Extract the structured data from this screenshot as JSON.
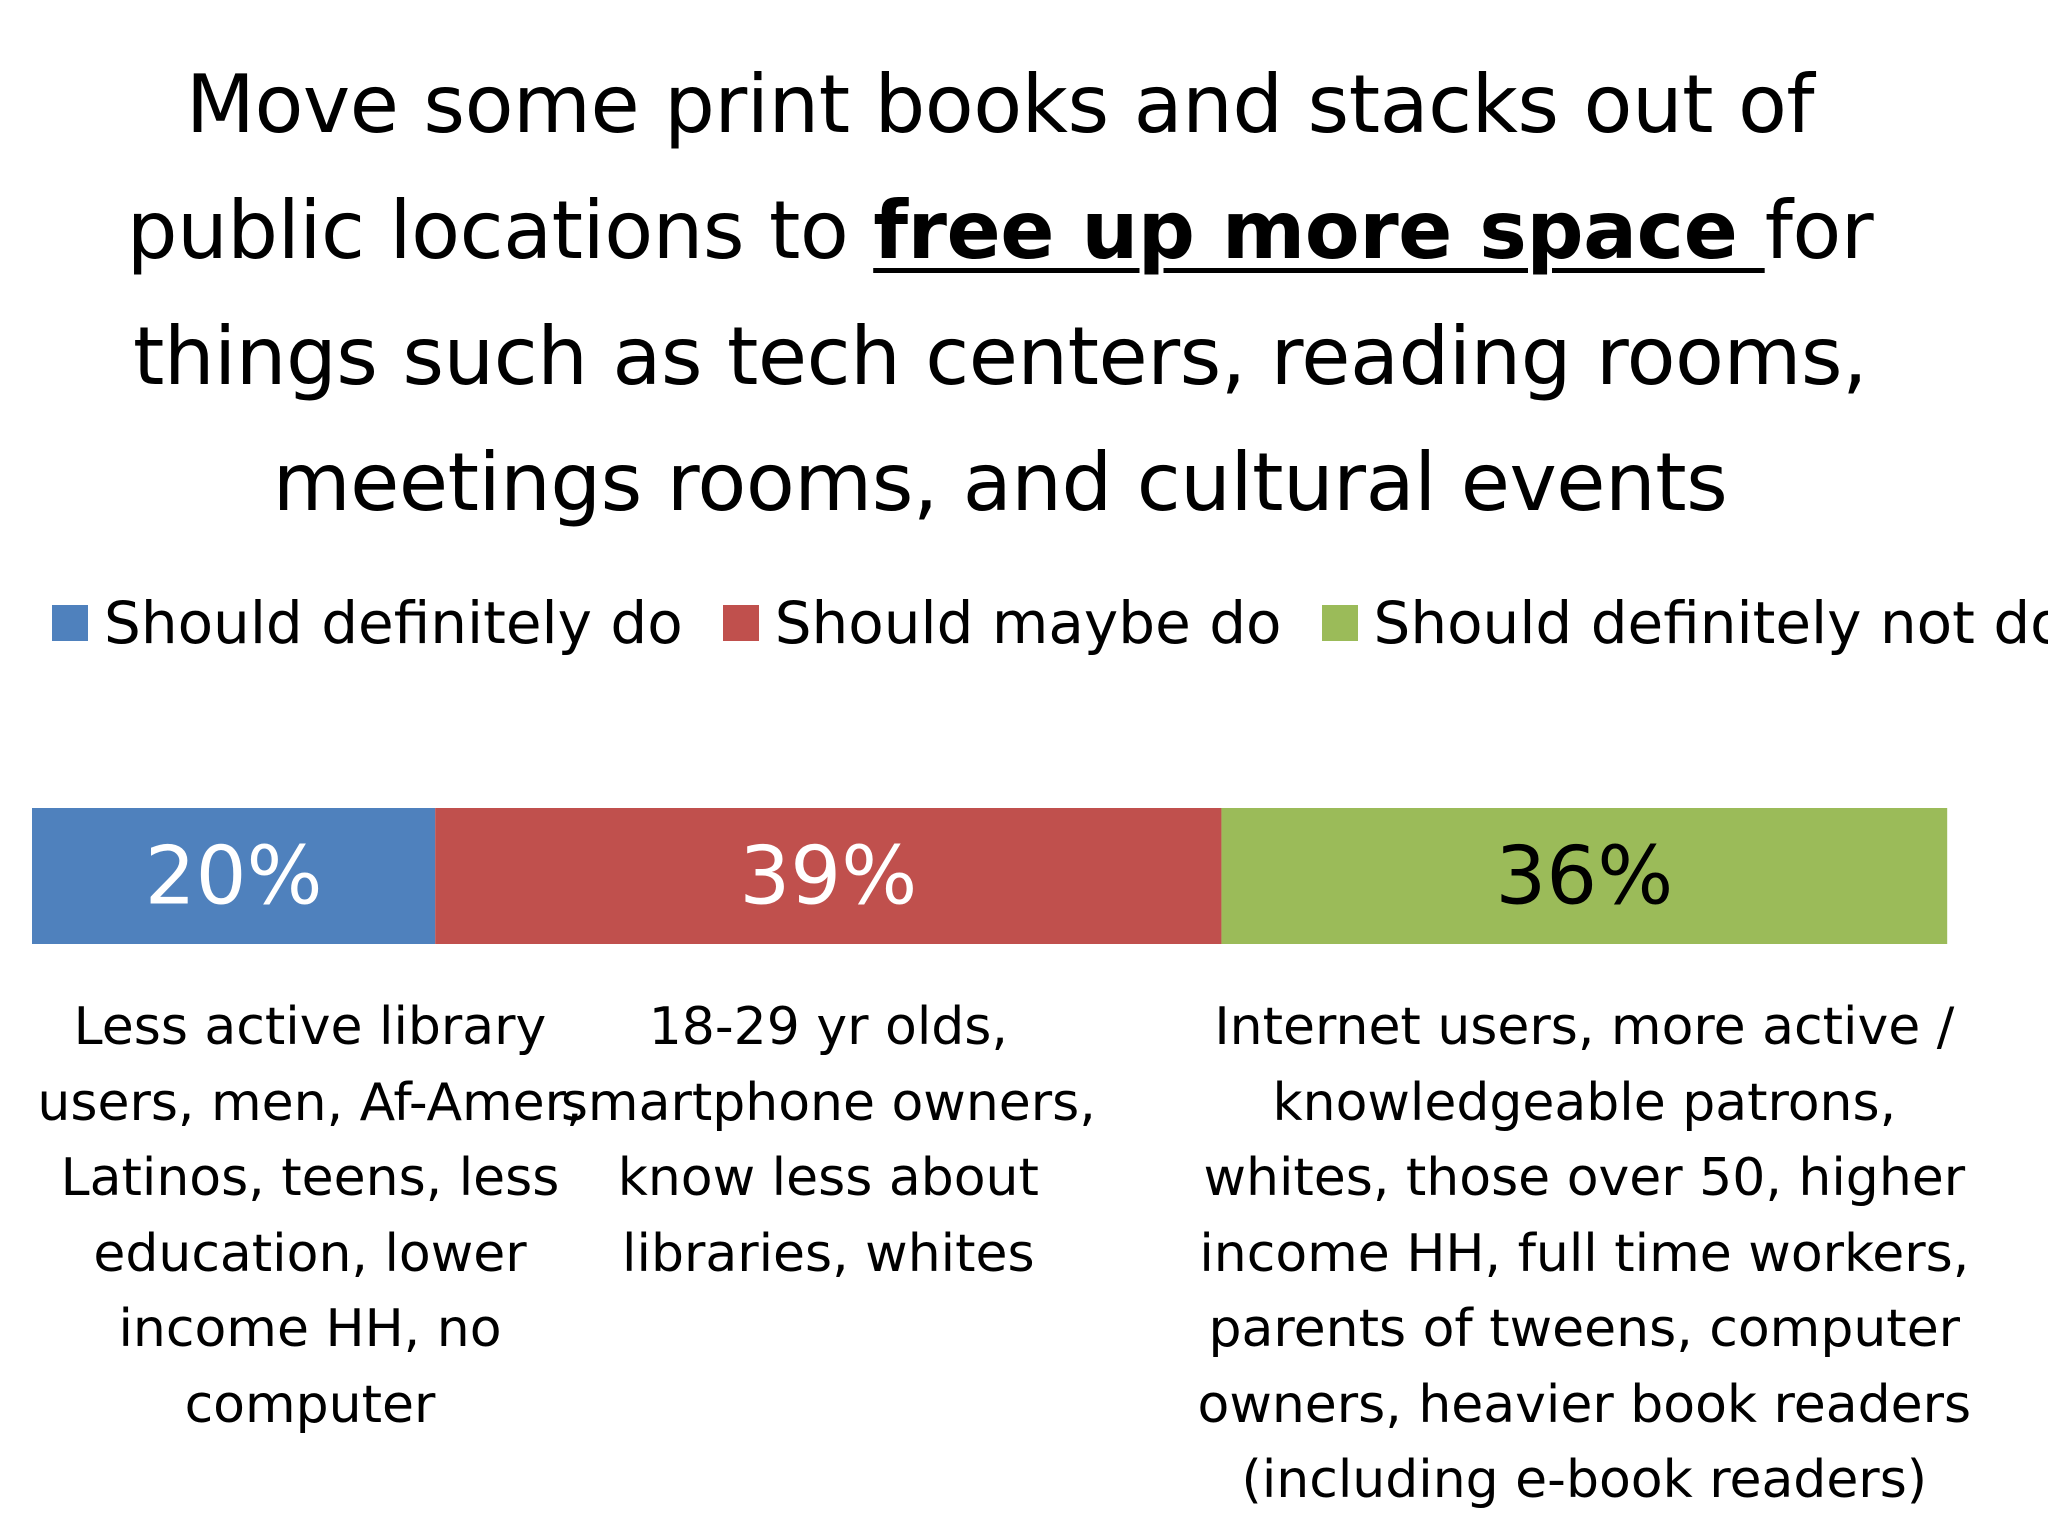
{
  "title": {
    "before": "Move some print books and stacks out of public locations to ",
    "emphasis": "free up more space ",
    "after": "for things such as tech centers, reading rooms, meetings rooms, and cultural events"
  },
  "legend": [
    {
      "label": "Should definitely do",
      "color": "#4f81bd"
    },
    {
      "label": "Should maybe do",
      "color": "#c0504d"
    },
    {
      "label": "Should definitely not do",
      "color": "#9bbb59"
    }
  ],
  "chart_data": {
    "type": "bar",
    "orientation": "horizontal-stacked",
    "categories": [
      ""
    ],
    "series": [
      {
        "name": "Should definitely do",
        "values": [
          20
        ],
        "label": "20%",
        "color": "#4f81bd",
        "label_color": "#ffffff"
      },
      {
        "name": "Should maybe do",
        "values": [
          39
        ],
        "label": "39%",
        "color": "#c0504d",
        "label_color": "#ffffff"
      },
      {
        "name": "Should definitely not do",
        "values": [
          36
        ],
        "label": "36%",
        "color": "#9bbb59",
        "label_color": "#000000"
      }
    ],
    "xlim": [
      0,
      95
    ],
    "grid": false,
    "legend_position": "top"
  },
  "notes": [
    "Less active library users, men, Af-Amer, Latinos, teens, less education, lower income HH, no computer",
    "18-29 yr olds, smartphone owners, know less about libraries, whites",
    "Internet users, more active / knowledgeable patrons, whites, those over 50, higher income HH, full time workers, parents of tweens, computer owners, heavier book readers (including e-book readers)"
  ]
}
